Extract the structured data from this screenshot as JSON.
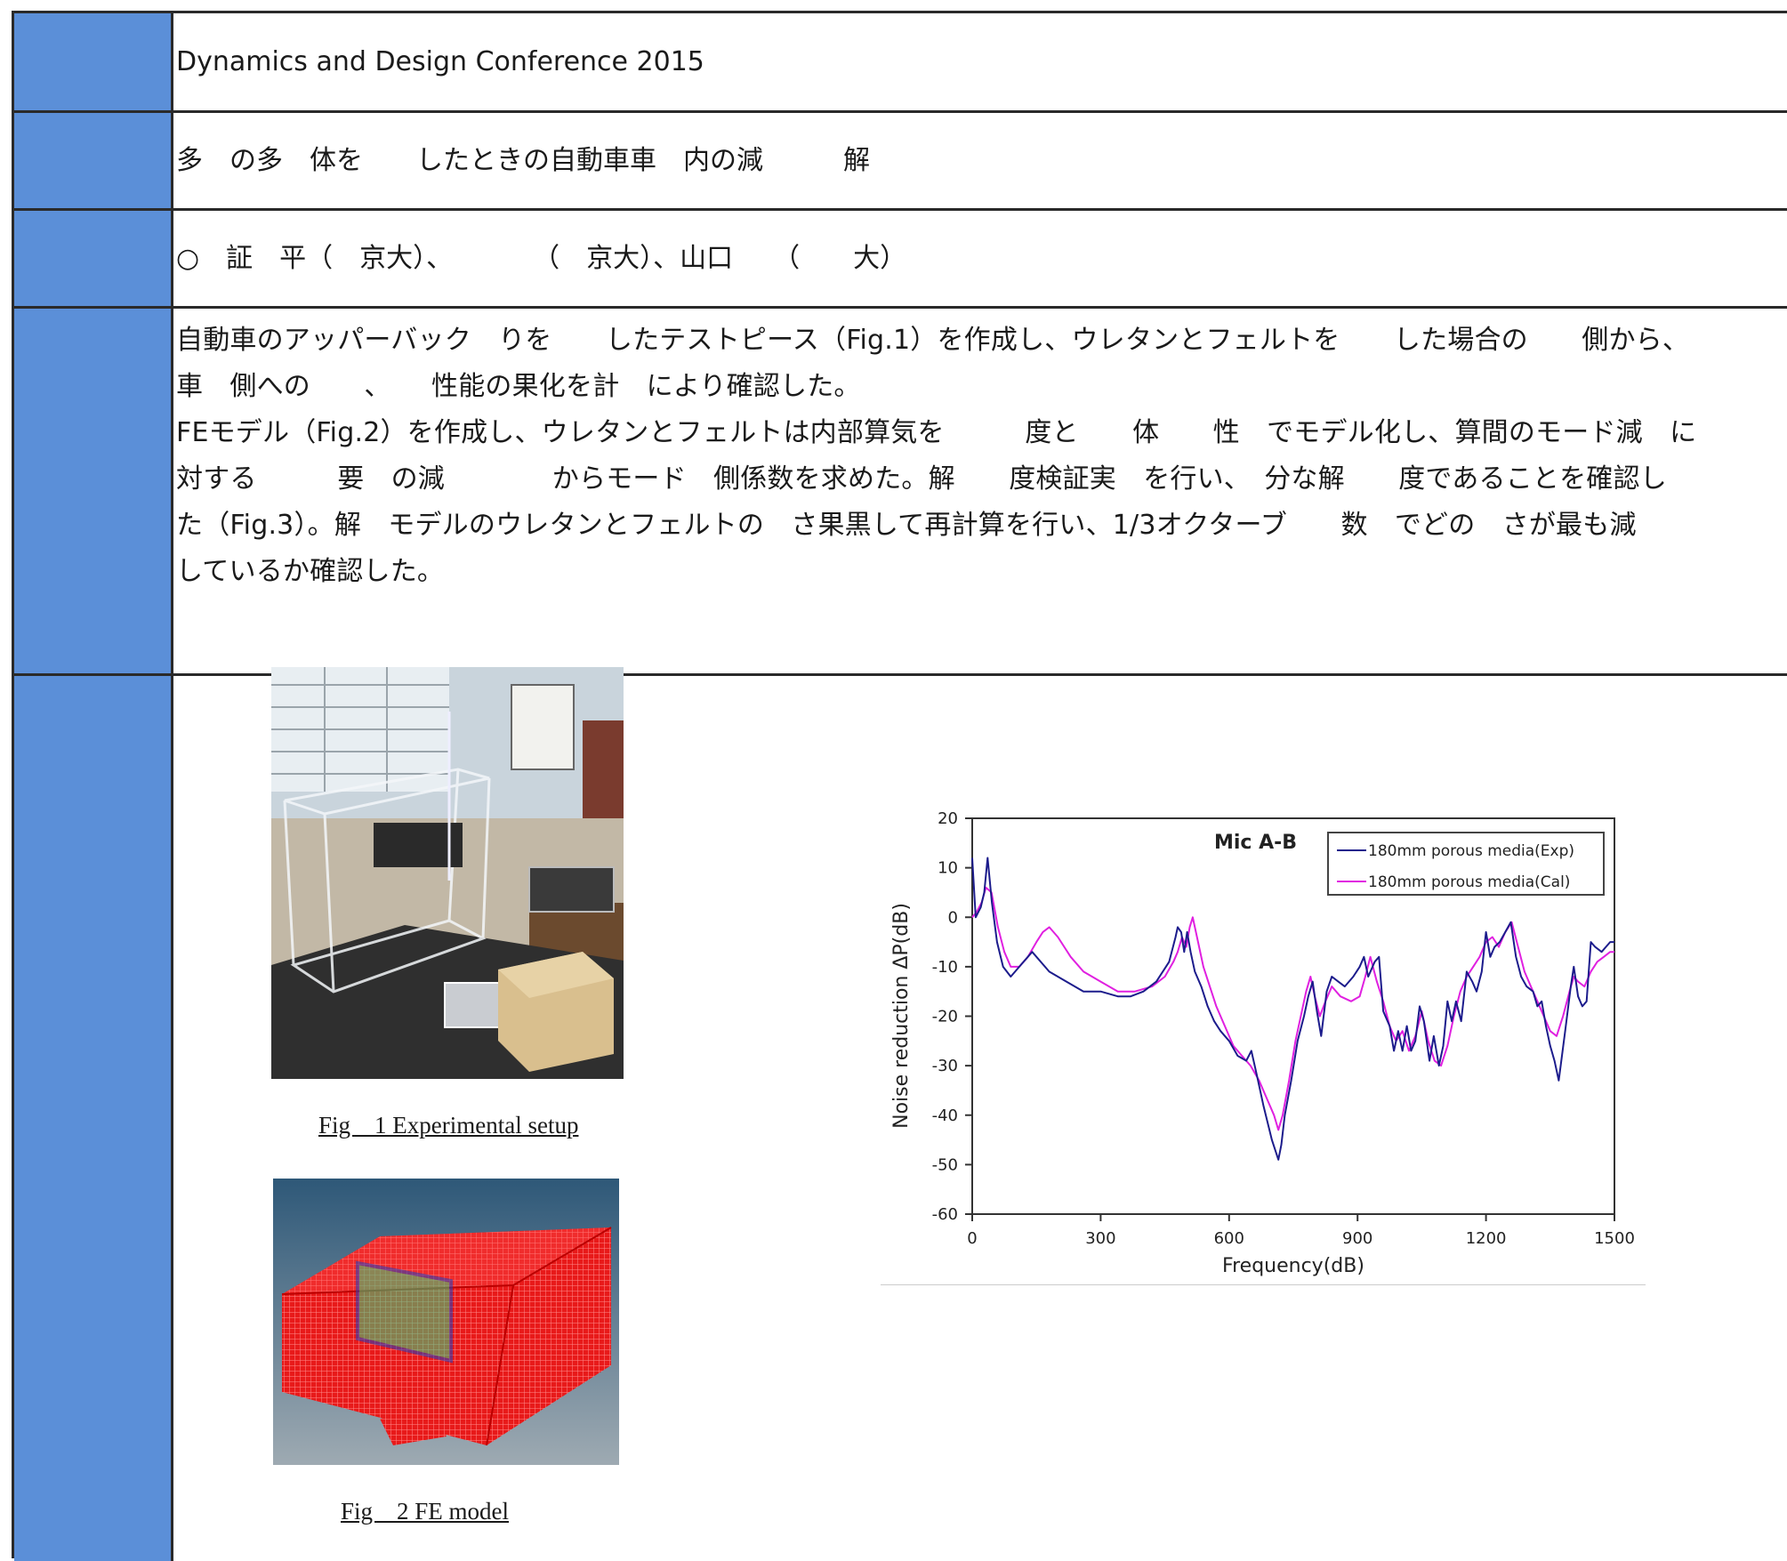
{
  "conference": "Dynamics and Design Conference 2015",
  "title": "多　の多　体を　　したときの自動車車　内の減　　　解",
  "authors": "○　証　平（　京大）、　　　　（　京大）、山口　　（　　大）",
  "abstract_lines": [
    "自動車のアッパーバック　りを　　したテストピース（Fig.1）を作成し、ウレタンとフェルトを　　した場合の　　側から、",
    "車　側への　　、　　性能の果化を計　により確認した。",
    "FEモデル（Fig.2）を作成し、ウレタンとフェルトは内部算気を　　　度と　　体　　性　でモデル化し、算間のモード減　に",
    "対する　　　要　の減　　　　からモード　側係数を求めた。解　　度検証実　を行い、　分な解　　度であることを確認し",
    "た（Fig.3）。解　モデルのウレタンとフェルトの　さ果黒して再計算を行い、1/3オクターブ　　数　でどの　さが最も減",
    "しているか確認した。"
  ],
  "figures": {
    "fig1_caption": "Fig　1 Experimental setup",
    "fig2_caption": "Fig　2 FE model"
  },
  "colors": {
    "label_band": "#5b8fd8",
    "series_exp": "#1c1c8c",
    "series_cal": "#e020e0"
  },
  "chart_data": {
    "type": "line",
    "title": "",
    "annotation": "Mic A-B",
    "xlabel": "Frequency(dB)",
    "ylabel": "Noise reduction ΔP(dB)",
    "xlim": [
      0,
      1500
    ],
    "ylim": [
      -60,
      20
    ],
    "xticks": [
      0,
      300,
      600,
      900,
      1200,
      1500
    ],
    "yticks": [
      20,
      10,
      0,
      -10,
      -20,
      -30,
      -40,
      -50,
      -60
    ],
    "legend": "top-right",
    "grid": false,
    "series": [
      {
        "name": "180mm porous media(Exp)",
        "color": "#1c1c8c",
        "x": [
          0,
          8,
          20,
          28,
          36,
          46,
          58,
          72,
          90,
          110,
          140,
          180,
          220,
          260,
          300,
          340,
          370,
          400,
          430,
          460,
          475,
          480,
          488,
          495,
          502,
          510,
          520,
          535,
          550,
          565,
          580,
          600,
          620,
          640,
          652,
          665,
          680,
          700,
          715,
          722,
          730,
          745,
          760,
          775,
          785,
          795,
          805,
          815,
          828,
          840,
          855,
          870,
          890,
          905,
          915,
          925,
          940,
          950,
          960,
          975,
          985,
          995,
          1005,
          1015,
          1025,
          1035,
          1045,
          1055,
          1068,
          1078,
          1090,
          1100,
          1110,
          1120,
          1130,
          1142,
          1155,
          1168,
          1178,
          1190,
          1200,
          1210,
          1220,
          1232,
          1245,
          1258,
          1270,
          1282,
          1295,
          1310,
          1320,
          1330,
          1340,
          1350,
          1360,
          1370,
          1385,
          1398,
          1405,
          1415,
          1425,
          1435,
          1445,
          1455,
          1470,
          1480,
          1490,
          1500
        ],
        "y": [
          12,
          0,
          2,
          5,
          12,
          3,
          -5,
          -10,
          -12,
          -10,
          -7,
          -11,
          -13,
          -15,
          -15,
          -16,
          -16,
          -15,
          -13,
          -9,
          -4,
          -2,
          -3,
          -7,
          -3,
          -7,
          -11,
          -14,
          -18,
          -21,
          -23,
          -25,
          -28,
          -29,
          -27,
          -32,
          -38,
          -45,
          -49,
          -46,
          -40,
          -33,
          -25,
          -20,
          -16,
          -13,
          -19,
          -24,
          -15,
          -12,
          -13,
          -14,
          -12,
          -10,
          -8,
          -12,
          -9,
          -8,
          -19,
          -22,
          -27,
          -23,
          -27,
          -22,
          -27,
          -25,
          -18,
          -21,
          -29,
          -24,
          -30,
          -26,
          -17,
          -21,
          -17,
          -21,
          -11,
          -13,
          -15,
          -11,
          -3,
          -8,
          -6,
          -5,
          -3,
          -1,
          -8,
          -12,
          -14,
          -15,
          -18,
          -17,
          -22,
          -26,
          -29,
          -33,
          -23,
          -14,
          -10,
          -16,
          -18,
          -17,
          -5,
          -6,
          -7,
          -6,
          -5,
          -5
        ]
      },
      {
        "name": "180mm porous media(Cal)",
        "color": "#e020e0",
        "x": [
          0,
          10,
          22,
          32,
          45,
          60,
          75,
          90,
          110,
          130,
          150,
          165,
          180,
          200,
          230,
          260,
          300,
          340,
          380,
          420,
          450,
          470,
          480,
          490,
          500,
          508,
          515,
          525,
          540,
          555,
          570,
          590,
          610,
          630,
          650,
          670,
          690,
          705,
          715,
          725,
          740,
          755,
          770,
          780,
          790,
          800,
          812,
          825,
          840,
          860,
          885,
          905,
          918,
          930,
          945,
          960,
          975,
          990,
          1005,
          1020,
          1035,
          1050,
          1065,
          1080,
          1095,
          1110,
          1125,
          1140,
          1155,
          1170,
          1185,
          1200,
          1215,
          1230,
          1245,
          1260,
          1275,
          1290,
          1305,
          1320,
          1335,
          1350,
          1365,
          1380,
          1395,
          1405,
          1415,
          1430,
          1445,
          1460,
          1475,
          1490,
          1500
        ],
        "y": [
          0,
          1,
          3,
          6,
          5,
          -2,
          -7,
          -10,
          -10,
          -8,
          -5,
          -3,
          -2,
          -4,
          -8,
          -11,
          -13,
          -15,
          -15,
          -14,
          -12,
          -9,
          -7,
          -4,
          -6,
          -2,
          0,
          -4,
          -10,
          -14,
          -18,
          -22,
          -26,
          -28,
          -30,
          -33,
          -37,
          -40,
          -43,
          -40,
          -33,
          -25,
          -19,
          -15,
          -12,
          -16,
          -20,
          -17,
          -14,
          -16,
          -17,
          -16,
          -12,
          -8,
          -13,
          -17,
          -22,
          -25,
          -23,
          -27,
          -24,
          -19,
          -25,
          -29,
          -30,
          -26,
          -20,
          -15,
          -12,
          -10,
          -8,
          -5,
          -4,
          -6,
          -3,
          -1,
          -6,
          -11,
          -14,
          -17,
          -20,
          -23,
          -24,
          -20,
          -15,
          -12,
          -13,
          -14,
          -11,
          -9,
          -8,
          -7,
          -7
        ]
      }
    ]
  }
}
